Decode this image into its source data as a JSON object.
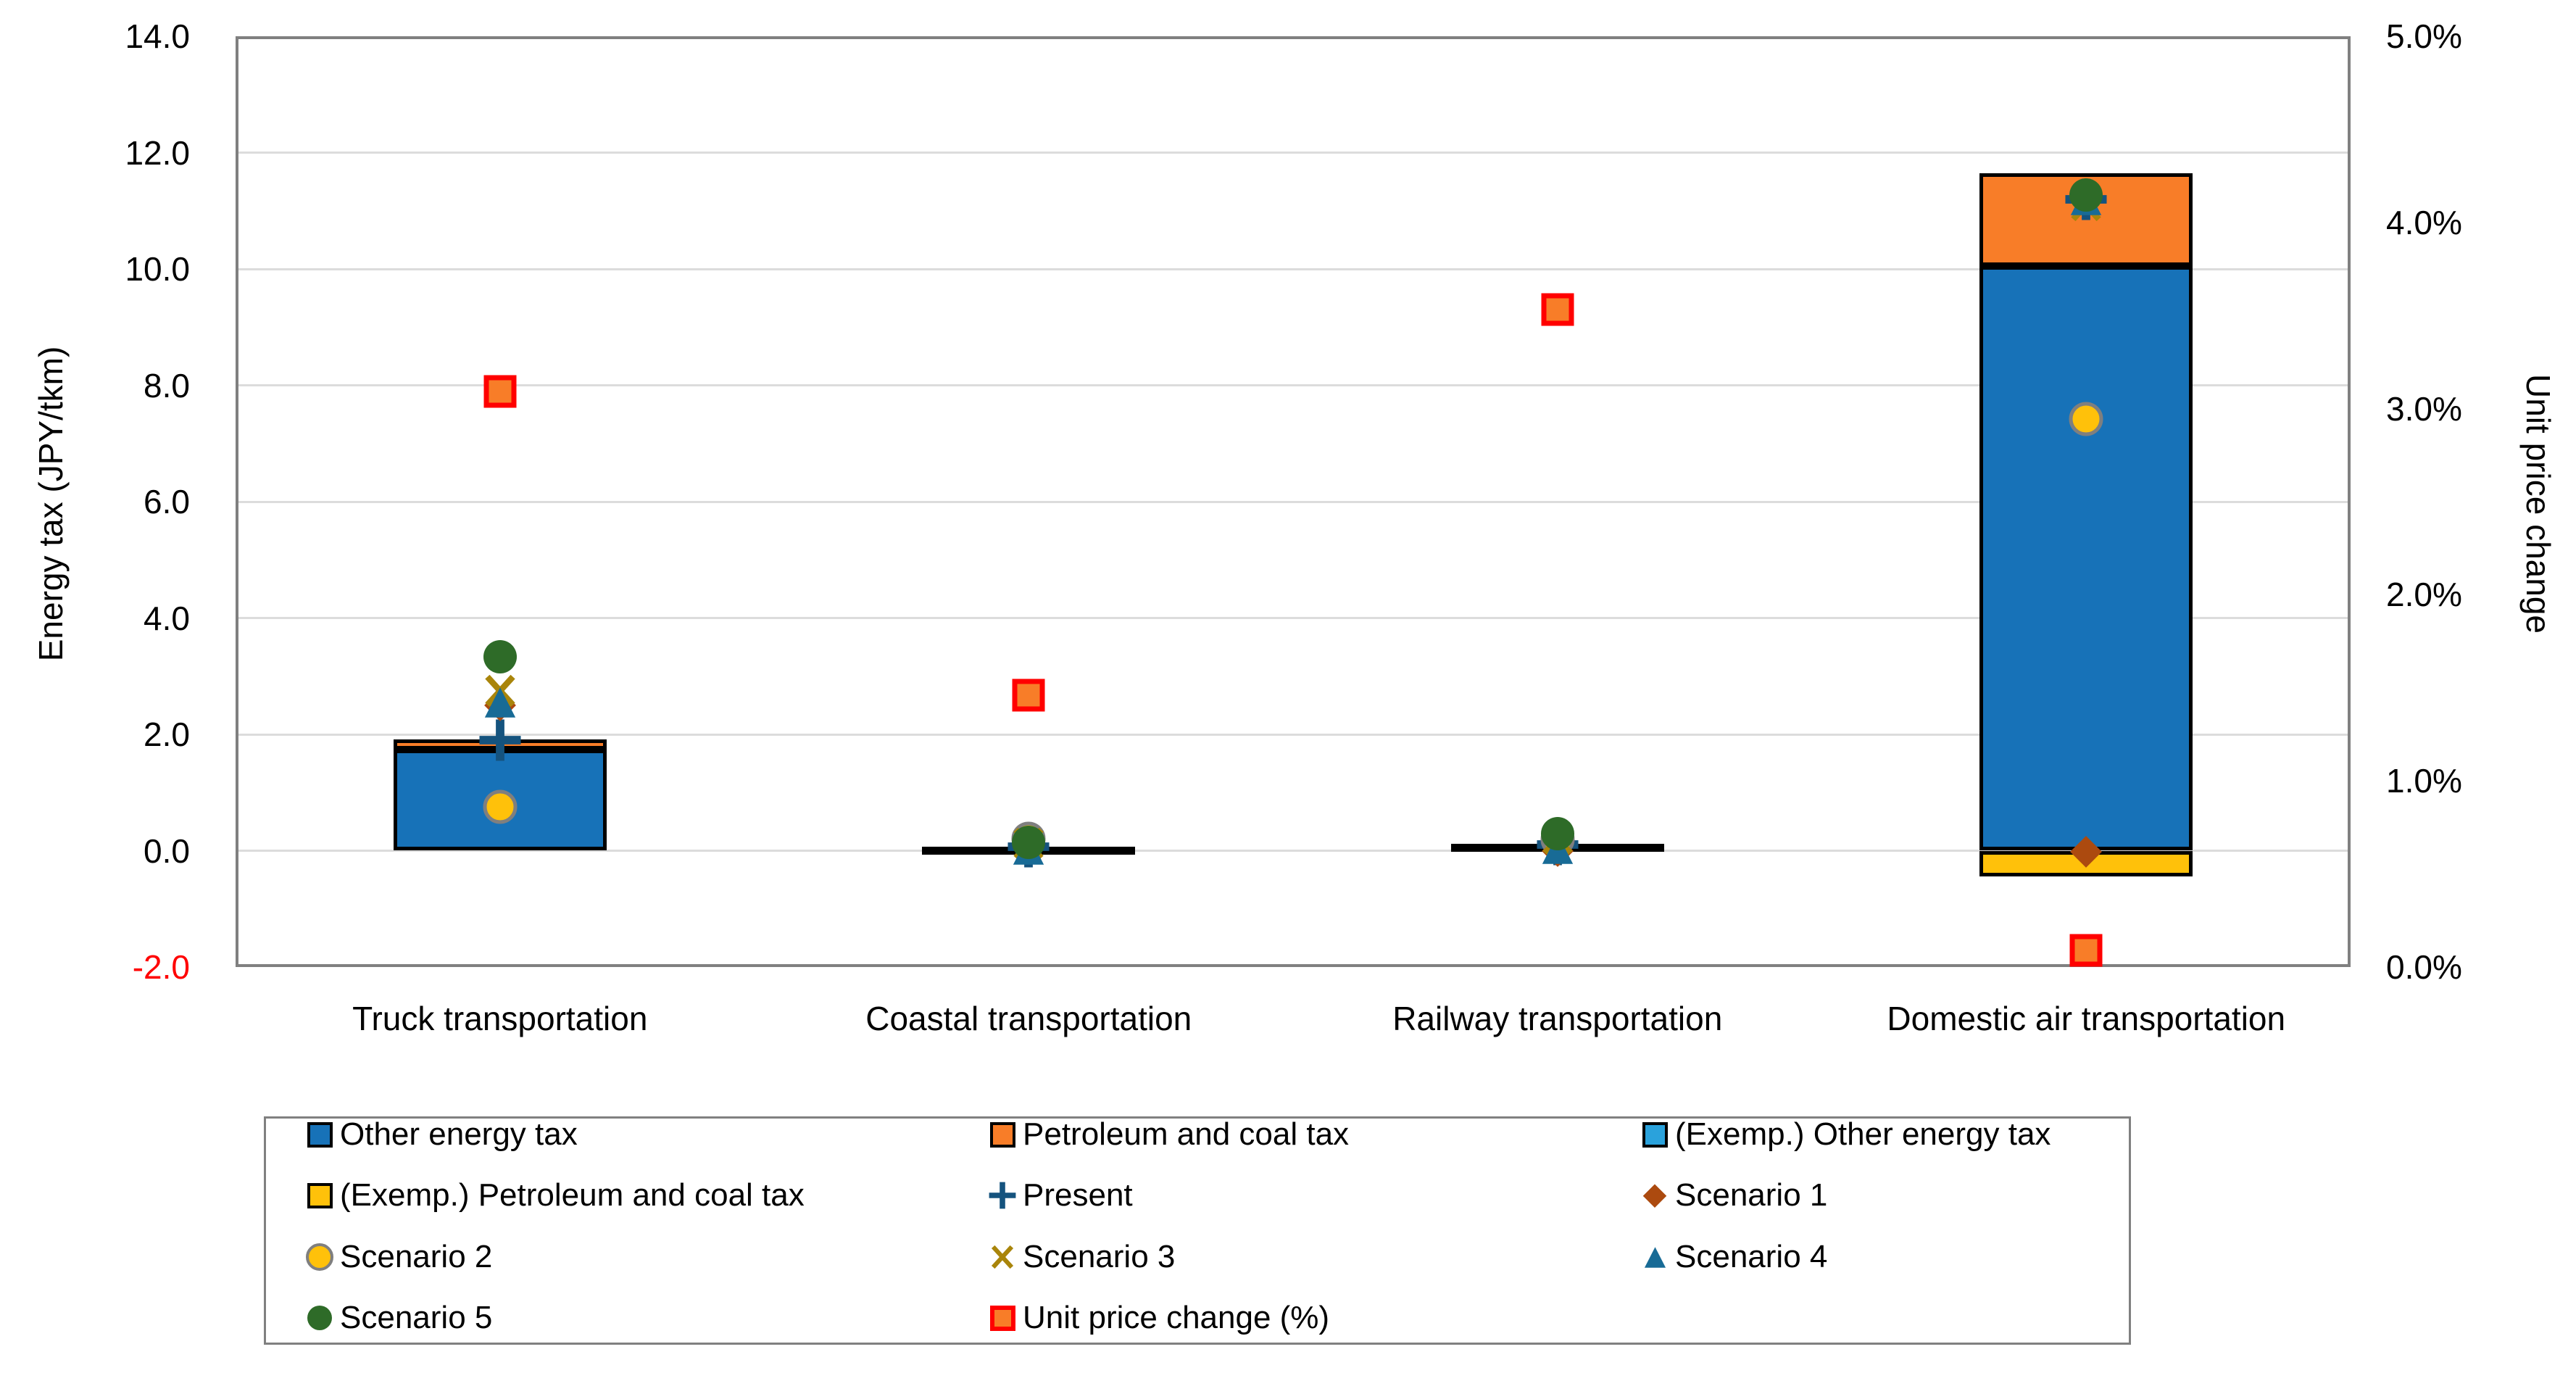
{
  "chart_data": {
    "type": "bar",
    "subtype": "stacked-bars-with-scatter-markers-dual-axis",
    "categories": [
      "Truck transportation",
      "Coastal transportation",
      "Railway transportation",
      "Domestic air transportation"
    ],
    "left_axis": {
      "label": "Energy tax (JPY/tkm)",
      "min": -2,
      "max": 14,
      "tick_step": 2,
      "tick_labels": [
        "14.0",
        "12.0",
        "10.0",
        "8.0",
        "6.0",
        "4.0",
        "2.0",
        "0.0",
        "-2.0"
      ],
      "negative_tick_color": "#FF0000"
    },
    "right_axis": {
      "label": "Unit price change",
      "min": 0,
      "max": 5,
      "tick_step": 1,
      "tick_labels": [
        "5.0%",
        "4.0%",
        "3.0%",
        "2.0%",
        "1.0%",
        "0.0%"
      ]
    },
    "grid": true,
    "legend_position": "bottom-box",
    "bar_series": [
      {
        "name": "Other energy tax",
        "color": "#1772B8",
        "values": [
          1.74,
          0.05,
          0.1,
          10.05
        ]
      },
      {
        "name": "Petroleum and coal tax",
        "color": "#F87D28",
        "values": [
          0.17,
          0.02,
          0.02,
          1.6
        ]
      },
      {
        "name": "(Exemp.) Other energy tax",
        "color": "#2AA2DC",
        "values": [
          0,
          0,
          0,
          0
        ]
      },
      {
        "name": "(Exemp.) Petroleum and coal tax",
        "color": "#FFC10A",
        "values": [
          0,
          0,
          0,
          -0.44
        ]
      }
    ],
    "marker_series": [
      {
        "name": "Present",
        "marker": "plus",
        "fill": "#15537E",
        "values": [
          1.9,
          0.07,
          0.1,
          11.2
        ]
      },
      {
        "name": "Scenario 1",
        "marker": "diamond",
        "fill": "#AC4A0F",
        "values": [
          2.5,
          0.05,
          0.0,
          -0.02
        ]
      },
      {
        "name": "Scenario 2",
        "marker": "circle-outlined",
        "fill": "#FFC10A",
        "outline": "#7F7F7F",
        "values": [
          0.75,
          0.2,
          0.19,
          7.42
        ]
      },
      {
        "name": "Scenario 3",
        "marker": "x",
        "fill": "#A9850B",
        "values": [
          2.75,
          0.12,
          0.2,
          11.1
        ]
      },
      {
        "name": "Scenario 4",
        "marker": "triangle",
        "fill": "#186B96",
        "values": [
          2.55,
          0.02,
          0.03,
          11.18
        ]
      },
      {
        "name": "Scenario 5",
        "marker": "circle",
        "fill": "#2E6B28",
        "values": [
          3.33,
          0.14,
          0.29,
          11.27
        ]
      }
    ],
    "right_axis_series": {
      "name": "Unit price change (%)",
      "marker": "square-outlined",
      "fill": "#F87D28",
      "outline": "#FF0000",
      "values_percent": [
        3.09,
        1.46,
        3.53,
        0.09
      ]
    },
    "legend": {
      "entries": [
        {
          "label": "Other energy tax",
          "marker": "square",
          "fill": "#1772B8"
        },
        {
          "label": "Petroleum and coal tax",
          "marker": "square",
          "fill": "#F87D28"
        },
        {
          "label": "(Exemp.) Other energy tax",
          "marker": "square",
          "fill": "#2AA2DC"
        },
        {
          "label": "(Exemp.) Petroleum and coal tax",
          "marker": "square",
          "fill": "#FFC10A"
        },
        {
          "label": "Present",
          "marker": "plus",
          "fill": "#15537E"
        },
        {
          "label": "Scenario 1",
          "marker": "diamond",
          "fill": "#AC4A0F"
        },
        {
          "label": "Scenario 2",
          "marker": "circle-outlined",
          "fill": "#FFC10A",
          "outline": "#7F7F7F"
        },
        {
          "label": "Scenario 3",
          "marker": "x",
          "fill": "#A9850B"
        },
        {
          "label": "Scenario 4",
          "marker": "triangle",
          "fill": "#186B96"
        },
        {
          "label": "Scenario 5",
          "marker": "circle",
          "fill": "#2E6B28"
        },
        {
          "label": "Unit price change (%)",
          "marker": "square-outlined",
          "fill": "#F87D28",
          "outline": "#FF0000"
        }
      ]
    },
    "colors": {
      "plot_border": "#808080",
      "gridline": "#DCDCDC",
      "bar_outline": "#000000",
      "legend_border": "#808080",
      "negative_tick": "#FF0000"
    }
  }
}
